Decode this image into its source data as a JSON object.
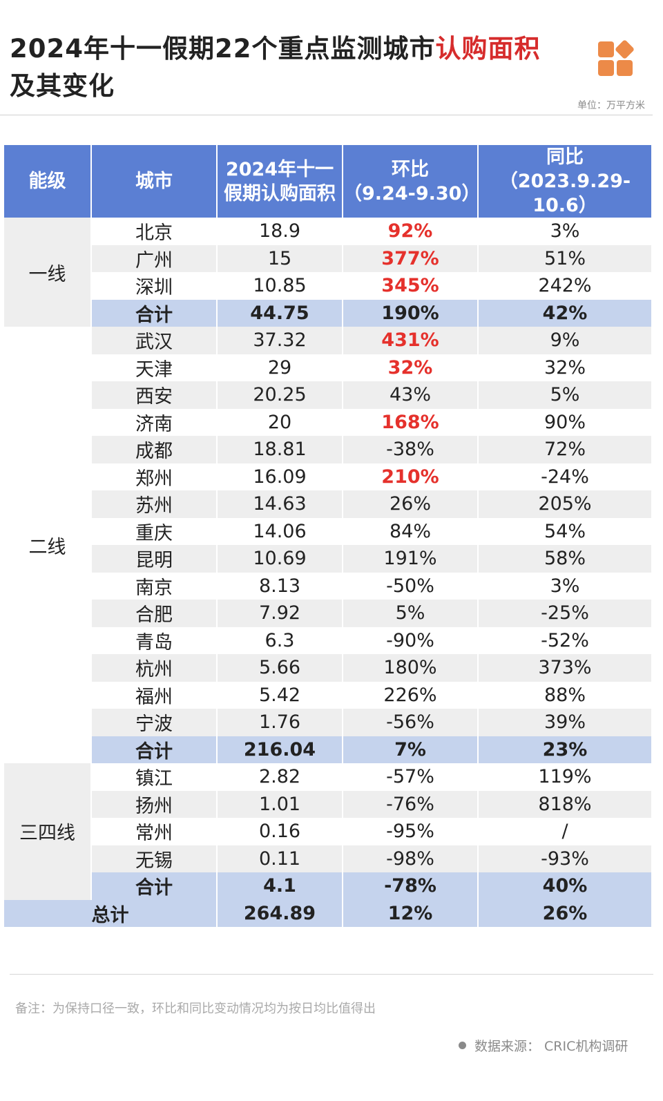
{
  "title": {
    "part1": "2024年十一假期22个重点监测城市",
    "highlight": "认购面积",
    "line2": "及其变化"
  },
  "unit": "单位：万平方米",
  "table": {
    "headers": [
      "能级",
      "城市",
      "2024年十一\n假期认购面积",
      "环比\n（9.24-9.30）",
      "同比\n（2023.9.29-10.6）"
    ],
    "tiers": [
      {
        "label": "一线",
        "rows": [
          {
            "city": "北京",
            "area": "18.9",
            "mom": "92%",
            "mom_red": true,
            "yoy": "3%"
          },
          {
            "city": "广州",
            "area": "15",
            "mom": "377%",
            "mom_red": true,
            "yoy": "51%"
          },
          {
            "city": "深圳",
            "area": "10.85",
            "mom": "345%",
            "mom_red": true,
            "yoy": "242%"
          }
        ],
        "subtotal": {
          "label": "合计",
          "area": "44.75",
          "mom": "190%",
          "yoy": "42%"
        }
      },
      {
        "label": "二线",
        "rows": [
          {
            "city": "武汉",
            "area": "37.32",
            "mom": "431%",
            "mom_red": true,
            "yoy": "9%"
          },
          {
            "city": "天津",
            "area": "29",
            "mom": "32%",
            "mom_red": true,
            "yoy": "32%"
          },
          {
            "city": "西安",
            "area": "20.25",
            "mom": "43%",
            "mom_red": false,
            "yoy": "5%"
          },
          {
            "city": "济南",
            "area": "20",
            "mom": "168%",
            "mom_red": true,
            "yoy": "90%"
          },
          {
            "city": "成都",
            "area": "18.81",
            "mom": "-38%",
            "mom_red": false,
            "yoy": "72%"
          },
          {
            "city": "郑州",
            "area": "16.09",
            "mom": "210%",
            "mom_red": true,
            "yoy": "-24%"
          },
          {
            "city": "苏州",
            "area": "14.63",
            "mom": "26%",
            "mom_red": false,
            "yoy": "205%"
          },
          {
            "city": "重庆",
            "area": "14.06",
            "mom": "84%",
            "mom_red": false,
            "yoy": "54%"
          },
          {
            "city": "昆明",
            "area": "10.69",
            "mom": "191%",
            "mom_red": false,
            "yoy": "58%"
          },
          {
            "city": "南京",
            "area": "8.13",
            "mom": "-50%",
            "mom_red": false,
            "yoy": "3%"
          },
          {
            "city": "合肥",
            "area": "7.92",
            "mom": "5%",
            "mom_red": false,
            "yoy": "-25%"
          },
          {
            "city": "青岛",
            "area": "6.3",
            "mom": "-90%",
            "mom_red": false,
            "yoy": "-52%"
          },
          {
            "city": "杭州",
            "area": "5.66",
            "mom": "180%",
            "mom_red": false,
            "yoy": "373%"
          },
          {
            "city": "福州",
            "area": "5.42",
            "mom": "226%",
            "mom_red": false,
            "yoy": "88%"
          },
          {
            "city": "宁波",
            "area": "1.76",
            "mom": "-56%",
            "mom_red": false,
            "yoy": "39%"
          }
        ],
        "subtotal": {
          "label": "合计",
          "area": "216.04",
          "mom": "7%",
          "yoy": "23%"
        }
      },
      {
        "label": "三四线",
        "rows": [
          {
            "city": "镇江",
            "area": "2.82",
            "mom": "-57%",
            "mom_red": false,
            "yoy": "119%"
          },
          {
            "city": "扬州",
            "area": "1.01",
            "mom": "-76%",
            "mom_red": false,
            "yoy": "818%"
          },
          {
            "city": "常州",
            "area": "0.16",
            "mom": "-95%",
            "mom_red": false,
            "yoy": "/"
          },
          {
            "city": "无锡",
            "area": "0.11",
            "mom": "-98%",
            "mom_red": false,
            "yoy": "-93%"
          }
        ],
        "subtotal": {
          "label": "合计",
          "area": "4.1",
          "mom": "-78%",
          "yoy": "40%"
        }
      }
    ],
    "total": {
      "label": "总计",
      "area": "264.89",
      "mom": "12%",
      "yoy": "26%"
    }
  },
  "note": "备注：为保持口径一致，环比和同比变动情况均为按日均比值得出",
  "source": "数据来源：  CRIC机构调研",
  "colors": {
    "header": "#5b7fd3",
    "subtotal": "#c5d3ed",
    "stripe": "#eeeeee",
    "highlight_red": "#e5312c",
    "logo": "#ec8a48"
  }
}
